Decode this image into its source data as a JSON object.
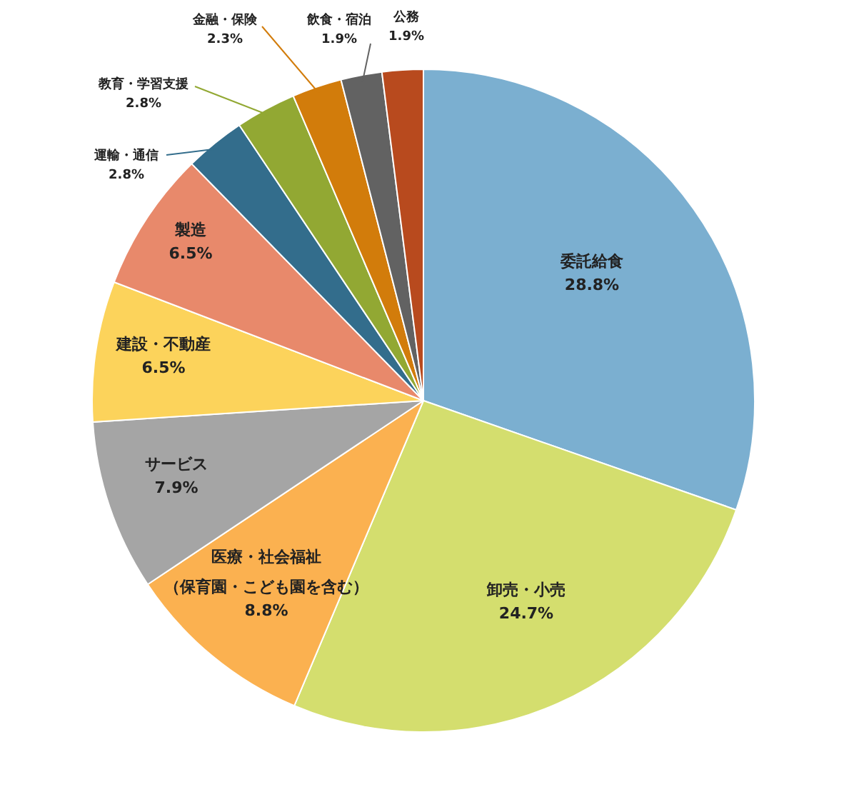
{
  "chart_data": {
    "type": "pie",
    "categories": [
      "委託給食",
      "卸売・小売",
      "医療・社会福祉（保育園・こども園を含む）",
      "サービス",
      "建設・不動産",
      "製造",
      "運輸・通信",
      "教育・学習支援",
      "金融・保険",
      "飲食・宿泊",
      "公務"
    ],
    "values": [
      28.8,
      24.7,
      8.8,
      7.9,
      6.5,
      6.5,
      2.8,
      2.8,
      2.3,
      1.9,
      1.9
    ],
    "value_labels": [
      "28.8%",
      "24.7%",
      "8.8%",
      "7.9%",
      "6.5%",
      "6.5%",
      "2.8%",
      "2.8%",
      "2.3%",
      "1.9%",
      "1.9%"
    ],
    "colors": [
      "#7bafd0",
      "#d4de6e",
      "#fbb150",
      "#a5a5a5",
      "#fcd35b",
      "#e8896b",
      "#336d8c",
      "#92a833",
      "#d27c0b",
      "#626262",
      "#b84a1e"
    ]
  }
}
